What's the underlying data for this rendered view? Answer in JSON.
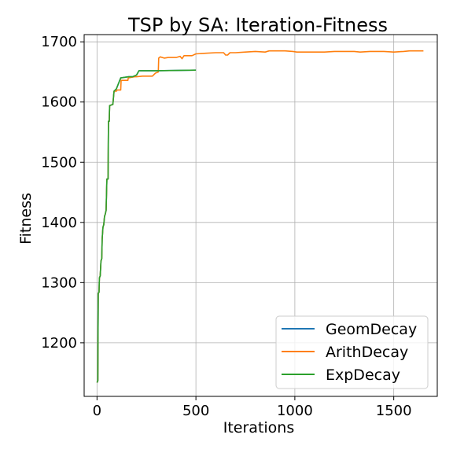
{
  "chart_data": {
    "type": "line",
    "title": "TSP by SA: Iteration-Fitness",
    "xlabel": "Iterations",
    "ylabel": "Fitness",
    "xlim": [
      -65,
      1720
    ],
    "ylim": [
      1111,
      1712
    ],
    "xticks": [
      0,
      500,
      1000,
      1500
    ],
    "yticks": [
      1200,
      1300,
      1400,
      1500,
      1600,
      1700
    ],
    "grid": true,
    "legend_position": "lower-right",
    "series": [
      {
        "name": "GeomDecay",
        "color": "#1f77b4",
        "points": [
          [
            0,
            1134
          ],
          [
            4,
            1137
          ],
          [
            6,
            1282
          ],
          [
            10,
            1284
          ],
          [
            12,
            1308
          ],
          [
            16,
            1311
          ],
          [
            20,
            1336
          ],
          [
            24,
            1340
          ],
          [
            26,
            1372
          ],
          [
            30,
            1392
          ],
          [
            34,
            1396
          ],
          [
            38,
            1410
          ],
          [
            42,
            1414
          ],
          [
            46,
            1420
          ],
          [
            50,
            1472
          ],
          [
            56,
            1472
          ],
          [
            58,
            1568
          ],
          [
            62,
            1568
          ],
          [
            64,
            1594
          ],
          [
            80,
            1596
          ],
          [
            86,
            1618
          ],
          [
            98,
            1622
          ],
          [
            120,
            1640
          ],
          [
            160,
            1642
          ],
          [
            180,
            1642
          ],
          [
            200,
            1645
          ],
          [
            212,
            1652
          ],
          [
            300,
            1652
          ],
          [
            500,
            1653
          ]
        ]
      },
      {
        "name": "ArithDecay",
        "color": "#ff7f0e",
        "points": [
          [
            0,
            1134
          ],
          [
            4,
            1137
          ],
          [
            6,
            1282
          ],
          [
            10,
            1284
          ],
          [
            12,
            1308
          ],
          [
            16,
            1311
          ],
          [
            20,
            1336
          ],
          [
            24,
            1340
          ],
          [
            26,
            1372
          ],
          [
            30,
            1392
          ],
          [
            34,
            1396
          ],
          [
            38,
            1410
          ],
          [
            42,
            1414
          ],
          [
            46,
            1420
          ],
          [
            50,
            1472
          ],
          [
            56,
            1472
          ],
          [
            58,
            1568
          ],
          [
            62,
            1568
          ],
          [
            64,
            1594
          ],
          [
            80,
            1596
          ],
          [
            86,
            1618
          ],
          [
            98,
            1618
          ],
          [
            102,
            1620
          ],
          [
            120,
            1620
          ],
          [
            122,
            1636
          ],
          [
            156,
            1636
          ],
          [
            158,
            1640
          ],
          [
            190,
            1642
          ],
          [
            200,
            1642
          ],
          [
            230,
            1643
          ],
          [
            280,
            1643
          ],
          [
            295,
            1648
          ],
          [
            310,
            1650
          ],
          [
            312,
            1673
          ],
          [
            320,
            1675
          ],
          [
            340,
            1673
          ],
          [
            360,
            1674
          ],
          [
            400,
            1674
          ],
          [
            420,
            1676
          ],
          [
            430,
            1672
          ],
          [
            440,
            1677
          ],
          [
            480,
            1677
          ],
          [
            500,
            1680
          ],
          [
            550,
            1681
          ],
          [
            600,
            1682
          ],
          [
            640,
            1682
          ],
          [
            650,
            1678
          ],
          [
            660,
            1678
          ],
          [
            672,
            1682
          ],
          [
            700,
            1682
          ],
          [
            750,
            1683
          ],
          [
            800,
            1684
          ],
          [
            850,
            1683
          ],
          [
            870,
            1685
          ],
          [
            950,
            1685
          ],
          [
            990,
            1684
          ],
          [
            1010,
            1683
          ],
          [
            1100,
            1683
          ],
          [
            1150,
            1683
          ],
          [
            1200,
            1684
          ],
          [
            1300,
            1684
          ],
          [
            1330,
            1683
          ],
          [
            1380,
            1684
          ],
          [
            1450,
            1684
          ],
          [
            1500,
            1683
          ],
          [
            1550,
            1684
          ],
          [
            1580,
            1685
          ],
          [
            1650,
            1685
          ]
        ]
      },
      {
        "name": "ExpDecay",
        "color": "#2ca02c",
        "points": [
          [
            0,
            1134
          ],
          [
            4,
            1137
          ],
          [
            6,
            1282
          ],
          [
            10,
            1284
          ],
          [
            12,
            1308
          ],
          [
            16,
            1311
          ],
          [
            20,
            1336
          ],
          [
            24,
            1340
          ],
          [
            26,
            1372
          ],
          [
            30,
            1392
          ],
          [
            34,
            1396
          ],
          [
            38,
            1410
          ],
          [
            42,
            1414
          ],
          [
            46,
            1420
          ],
          [
            50,
            1472
          ],
          [
            56,
            1472
          ],
          [
            58,
            1568
          ],
          [
            62,
            1568
          ],
          [
            64,
            1594
          ],
          [
            80,
            1596
          ],
          [
            86,
            1618
          ],
          [
            98,
            1622
          ],
          [
            120,
            1640
          ],
          [
            160,
            1642
          ],
          [
            180,
            1642
          ],
          [
            200,
            1645
          ],
          [
            212,
            1652
          ],
          [
            300,
            1652
          ],
          [
            500,
            1653
          ]
        ]
      }
    ]
  }
}
